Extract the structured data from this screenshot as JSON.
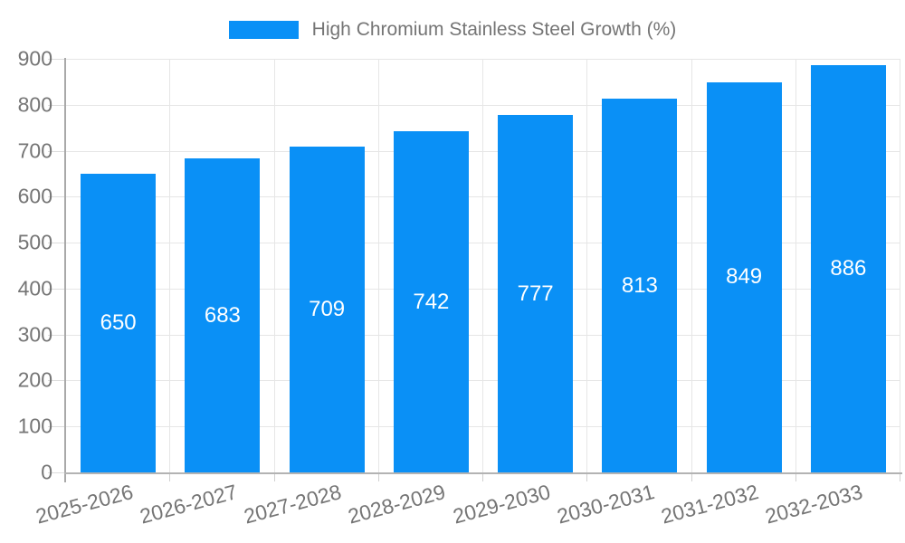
{
  "chart_data": {
    "type": "bar",
    "title": "High Chromium Stainless Steel Growth (%)",
    "series": [
      {
        "name": "High Chromium Stainless Steel Growth (%)",
        "values": [
          650,
          683,
          709,
          742,
          777,
          813,
          849,
          886
        ]
      }
    ],
    "categories": [
      "2025-2026",
      "2026-2027",
      "2027-2028",
      "2028-2029",
      "2029-2030",
      "2030-2031",
      "2031-2032",
      "2032-2033"
    ],
    "xlabel": "",
    "ylabel": "",
    "ylim": [
      0,
      900
    ],
    "ytick_interval": 100,
    "ytick_labels": [
      "0",
      "100",
      "200",
      "300",
      "400",
      "500",
      "600",
      "700",
      "800",
      "900"
    ],
    "grid": "horizontal and vertical",
    "legend_position": "top-center",
    "value_labels": "centered inside bars, white",
    "bar_color": "#0a90f6",
    "gridline_color": "#e6e6e6",
    "axis_line_color": "#b0b0b0",
    "text_color": "#757575",
    "background_color": "#ffffff"
  },
  "legend": {
    "label": "High Chromium Stainless Steel Growth (%)"
  }
}
